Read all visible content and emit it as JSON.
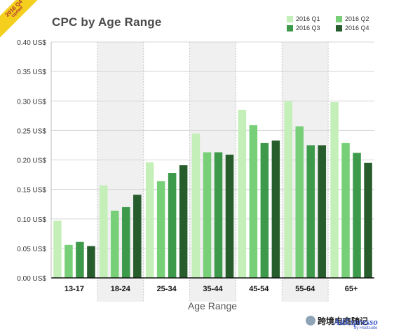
{
  "badge": {
    "line1": "2016 Q4",
    "line2": "Update"
  },
  "colors": {
    "Q1": "#c5efb9",
    "Q2": "#77d078",
    "Q3": "#3e9a4b",
    "Q4": "#275d2c",
    "shade": "#f0f0f0",
    "grid": "#d5d5d5"
  },
  "watermark": {
    "text": "跨境电商随记",
    "brand": "AdEspresso",
    "sub": "by Hootsuite"
  },
  "chart_data": {
    "type": "bar",
    "title": "CPC by Age Range",
    "xlabel": "Age Range",
    "ylabel": "",
    "categories": [
      "13-17",
      "18-24",
      "25-34",
      "35-44",
      "45-54",
      "55-64",
      "65+"
    ],
    "ylim": [
      0,
      0.4
    ],
    "yticks": [
      "0.00 US$",
      "0.05 US$",
      "0.10 US$",
      "0.15 US$",
      "0.20 US$",
      "0.25 US$",
      "0.30 US$",
      "0.35 US$",
      "0.40 US$"
    ],
    "grid": true,
    "legend_position": "top-right",
    "series": [
      {
        "name": "2016 Q1",
        "values": [
          0.097,
          0.157,
          0.196,
          0.245,
          0.285,
          0.3,
          0.298
        ]
      },
      {
        "name": "2016 Q2",
        "values": [
          0.056,
          0.114,
          0.164,
          0.213,
          0.259,
          0.257,
          0.229
        ]
      },
      {
        "name": "2016 Q3",
        "values": [
          0.061,
          0.12,
          0.178,
          0.213,
          0.229,
          0.225,
          0.212
        ]
      },
      {
        "name": "2016 Q4",
        "values": [
          0.054,
          0.141,
          0.191,
          0.209,
          0.233,
          0.225,
          0.195
        ]
      }
    ]
  }
}
